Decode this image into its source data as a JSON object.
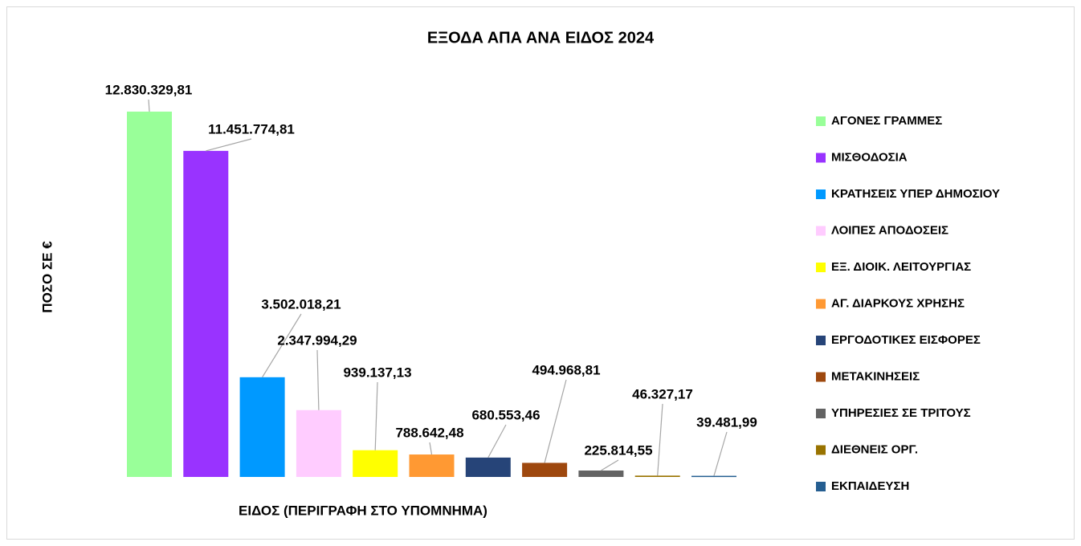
{
  "chart_data": {
    "type": "bar",
    "title": "ΕΞΟΔΑ ΑΠΑ ΑΝΑ ΕΙΔΟΣ 2024",
    "x_label": "ΕΙΔΟΣ (ΠΕΡΙΓΡΑΦΗ ΣΤΟ ΥΠΟΜΝΗΜΑ)",
    "y_label": "ΠΟΣΟ ΣΕ €",
    "categories": [
      "ΑΓΟΝΕΣ ΓΡΑΜΜΕΣ",
      "ΜΙΣΘΟΔΟΣΙΑ",
      "ΚΡΑΤΗΣΕΙΣ ΥΠΕΡ ΔΗΜΟΣΙΟΥ",
      "ΛΟΙΠΕΣ ΑΠΟΔΟΣΕΙΣ",
      "ΕΞ. ΔΙΟΙΚ. ΛΕΙΤΟΥΡΓΙΑΣ",
      "ΑΓ. ΔΙΑΡΚΟΥΣ ΧΡΗΣΗΣ",
      "ΕΡΓΟΔΟΤΙΚΕΣ ΕΙΣΦΟΡΕΣ",
      "ΜΕΤΑΚΙΝΗΣΕΙΣ",
      "ΥΠΗΡΕΣΙΕΣ ΣΕ ΤΡΙΤΟΥΣ",
      "ΔΙΕΘΝΕΙΣ ΟΡΓ.",
      "ΕΚΠΑΙΔΕΥΣΗ"
    ],
    "values": [
      12830329.81,
      11451774.81,
      3502018.21,
      2347994.29,
      939137.13,
      788642.48,
      680553.46,
      494968.81,
      225814.55,
      46327.17,
      39481.99
    ],
    "value_labels": [
      "12.830.329,81",
      "11.451.774,81",
      "3.502.018,21",
      "2.347.994,29",
      "939.137,13",
      "788.642,48",
      "680.553,46",
      "494.968,81",
      "225.814,55",
      "46.327,17",
      "39.481,99"
    ],
    "colors": [
      "#99ff99",
      "#9933ff",
      "#0099ff",
      "#ffccff",
      "#ffff00",
      "#ff9933",
      "#264478",
      "#9e480e",
      "#636363",
      "#997300",
      "#255e91"
    ],
    "ylim": [
      0,
      13000000
    ],
    "legend": "right"
  }
}
